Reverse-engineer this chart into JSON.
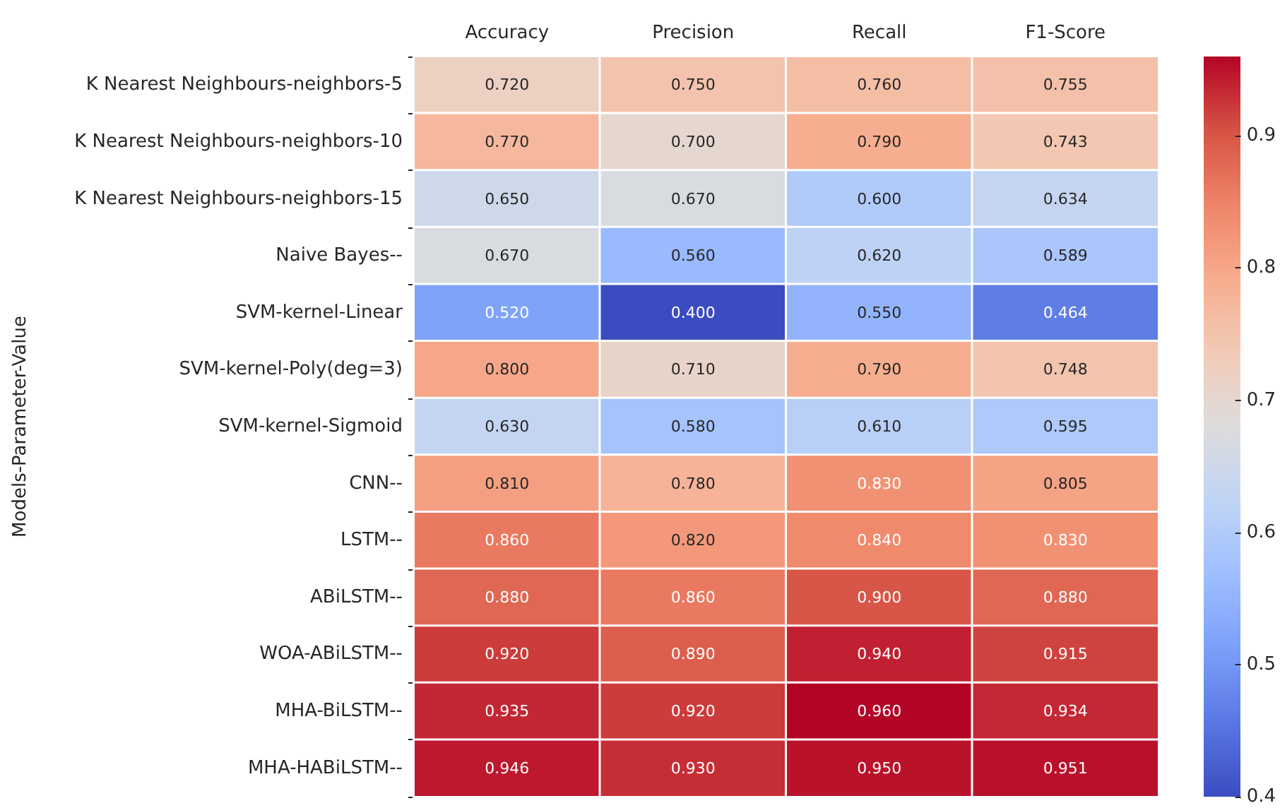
{
  "chart_data": {
    "type": "heatmap",
    "ylabel": "Models-Parameter-Value",
    "categories": [
      "Accuracy",
      "Precision",
      "Recall",
      "F1-Score"
    ],
    "y_categories": [
      "K Nearest Neighbours-neighbors-5",
      "K Nearest Neighbours-neighbors-10",
      "K Nearest Neighbours-neighbors-15",
      "Naive Bayes--",
      "SVM-kernel-Linear",
      "SVM-kernel-Poly(deg=3)",
      "SVM-kernel-Sigmoid",
      "CNN--",
      "LSTM--",
      "ABiLSTM--",
      "WOA-ABiLSTM--",
      "MHA-BiLSTM--",
      "MHA-HABiLSTM--"
    ],
    "cells": [
      [
        0.72,
        0.75,
        0.76,
        0.755
      ],
      [
        0.77,
        0.7,
        0.79,
        0.743
      ],
      [
        0.65,
        0.67,
        0.6,
        0.634
      ],
      [
        0.67,
        0.56,
        0.62,
        0.589
      ],
      [
        0.52,
        0.4,
        0.55,
        0.464
      ],
      [
        0.8,
        0.71,
        0.79,
        0.748
      ],
      [
        0.63,
        0.58,
        0.61,
        0.595
      ],
      [
        0.81,
        0.78,
        0.83,
        0.805
      ],
      [
        0.86,
        0.82,
        0.84,
        0.83
      ],
      [
        0.88,
        0.86,
        0.9,
        0.88
      ],
      [
        0.92,
        0.89,
        0.94,
        0.915
      ],
      [
        0.935,
        0.92,
        0.96,
        0.934
      ],
      [
        0.946,
        0.93,
        0.95,
        0.951
      ]
    ],
    "cell_labels": [
      [
        "0.720",
        "0.750",
        "0.760",
        "0.755"
      ],
      [
        "0.770",
        "0.700",
        "0.790",
        "0.743"
      ],
      [
        "0.650",
        "0.670",
        "0.600",
        "0.634"
      ],
      [
        "0.670",
        "0.560",
        "0.620",
        "0.589"
      ],
      [
        "0.520",
        "0.400",
        "0.550",
        "0.464"
      ],
      [
        "0.800",
        "0.710",
        "0.790",
        "0.748"
      ],
      [
        "0.630",
        "0.580",
        "0.610",
        "0.595"
      ],
      [
        "0.810",
        "0.780",
        "0.830",
        "0.805"
      ],
      [
        "0.860",
        "0.820",
        "0.840",
        "0.830"
      ],
      [
        "0.880",
        "0.860",
        "0.900",
        "0.880"
      ],
      [
        "0.920",
        "0.890",
        "0.940",
        "0.915"
      ],
      [
        "0.935",
        "0.920",
        "0.960",
        "0.934"
      ],
      [
        "0.946",
        "0.930",
        "0.950",
        "0.951"
      ]
    ],
    "clim": [
      0.4,
      0.96
    ],
    "cticks": [
      0.4,
      0.5,
      0.6,
      0.7,
      0.8,
      0.9
    ]
  }
}
